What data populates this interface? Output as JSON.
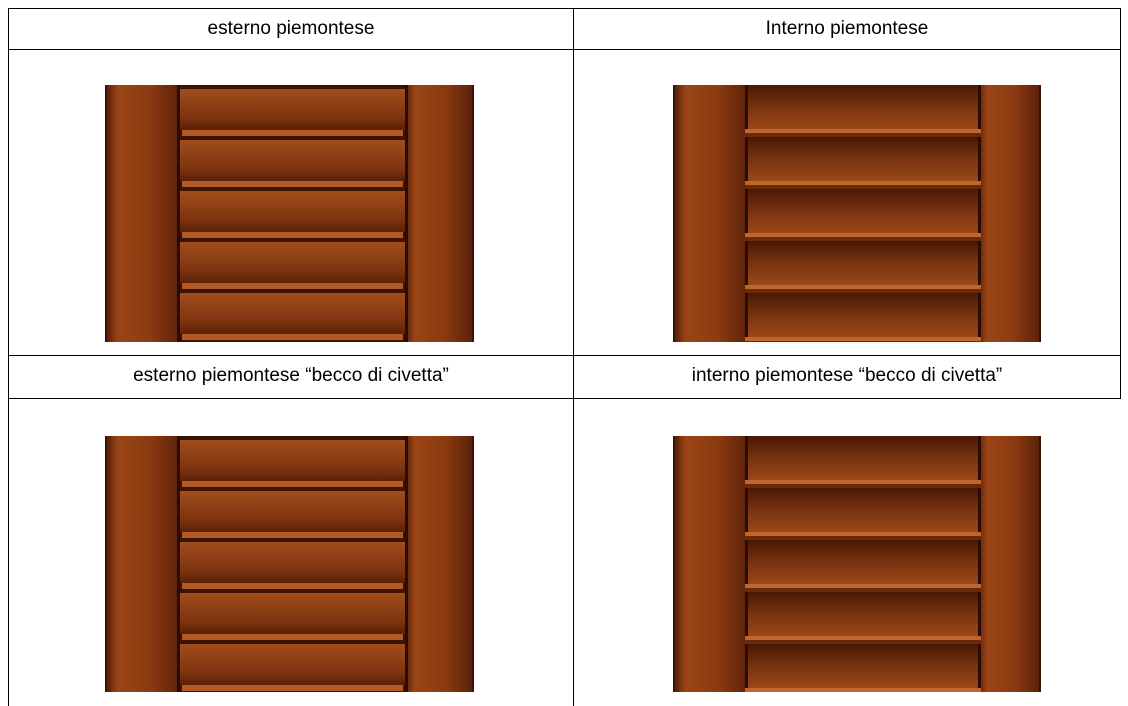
{
  "table": {
    "rows": [
      [
        "esterno piemontese",
        "Interno piemontese"
      ],
      [
        "esterno piemontese “becco di civetta”",
        "interno piemontese “becco di civetta”"
      ]
    ]
  }
}
